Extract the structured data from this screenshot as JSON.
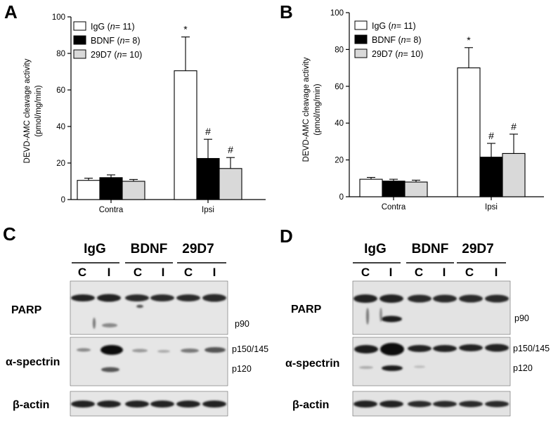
{
  "panels": [
    {
      "letter": "A",
      "chart_data": {
        "type": "bar",
        "ylabel": "DEVD-AMC cleavage activity",
        "ylabel_units": "(pmol/mg/min)",
        "categories": [
          "Contra",
          "Ipsi"
        ],
        "ylim": [
          0,
          100
        ],
        "yticks": [
          0,
          20,
          40,
          60,
          80,
          100
        ],
        "series": [
          {
            "name": "IgG",
            "legend": [
              "IgG (",
              "n",
              "= 11)"
            ],
            "color": "#ffffff",
            "values": [
              10.5,
              70.5
            ],
            "errors": [
              1.2,
              18.5
            ],
            "markers": [
              "",
              "*"
            ]
          },
          {
            "name": "BDNF",
            "legend": [
              "BDNF (",
              "n",
              "= 8)"
            ],
            "color": "#000000",
            "values": [
              12,
              22.5
            ],
            "errors": [
              1.5,
              10.5
            ],
            "markers": [
              "",
              "#"
            ]
          },
          {
            "name": "29D7",
            "legend": [
              "29D7 (",
              "n",
              "= 10)"
            ],
            "color": "#d9d9d9",
            "values": [
              10,
              17
            ],
            "errors": [
              1,
              6
            ],
            "markers": [
              "",
              "#"
            ]
          }
        ]
      }
    },
    {
      "letter": "B",
      "chart_data": {
        "type": "bar",
        "ylabel": "DEVD-AMC cleavage activity",
        "ylabel_units": "(pmol/mg/min)",
        "categories": [
          "Contra",
          "Ipsi"
        ],
        "ylim": [
          0,
          100
        ],
        "yticks": [
          0,
          20,
          40,
          60,
          80,
          100
        ],
        "series": [
          {
            "name": "IgG",
            "legend": [
              "IgG (",
              "n",
              "= 11)"
            ],
            "color": "#ffffff",
            "values": [
              9.5,
              70
            ],
            "errors": [
              1,
              11
            ],
            "markers": [
              "",
              "*"
            ]
          },
          {
            "name": "BDNF",
            "legend": [
              "BDNF (",
              "n",
              "= 8)"
            ],
            "color": "#000000",
            "values": [
              8.5,
              21.5
            ],
            "errors": [
              1,
              7.5
            ],
            "markers": [
              "",
              "#"
            ]
          },
          {
            "name": "29D7",
            "legend": [
              "29D7 (",
              "n",
              "= 10)"
            ],
            "color": "#d9d9d9",
            "values": [
              8,
              23.5
            ],
            "errors": [
              1,
              10.5
            ],
            "markers": [
              "",
              "#"
            ]
          }
        ]
      }
    }
  ],
  "blots": [
    {
      "letter": "C",
      "groups": [
        "IgG",
        "BDNF",
        "29D7"
      ],
      "lanes": [
        "C",
        "I",
        "C",
        "I",
        "C",
        "I"
      ],
      "rows": [
        "PARP",
        "α-spectrin",
        "β-actin"
      ],
      "bands": [
        "p90",
        "p150/145",
        "p120"
      ]
    },
    {
      "letter": "D",
      "groups": [
        "IgG",
        "BDNF",
        "29D7"
      ],
      "lanes": [
        "C",
        "I",
        "C",
        "I",
        "C",
        "I"
      ],
      "rows": [
        "PARP",
        "α-spectrin",
        "β-actin"
      ],
      "bands": [
        "p90",
        "p150/145",
        "p120"
      ]
    }
  ]
}
